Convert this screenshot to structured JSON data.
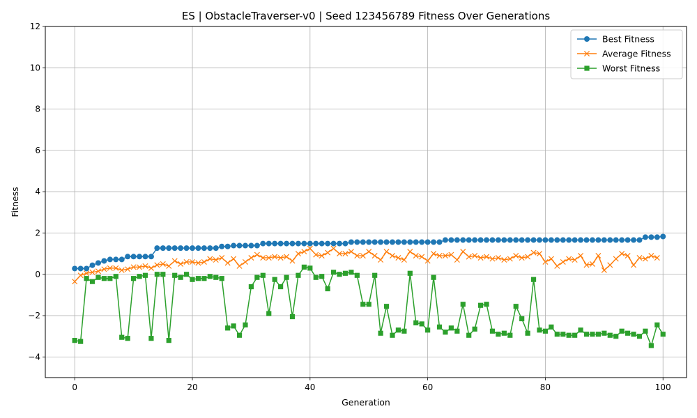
{
  "chart_data": {
    "type": "line",
    "title": "ES | ObstacleTraverser-v0 | Seed 123456789 Fitness Over Generations",
    "xlabel": "Generation",
    "ylabel": "Fitness",
    "xlim": [
      -5,
      104
    ],
    "ylim": [
      -5,
      12
    ],
    "xticks": [
      0,
      20,
      40,
      60,
      80,
      100
    ],
    "yticks": [
      -4,
      -2,
      0,
      2,
      4,
      6,
      8,
      10,
      12
    ],
    "grid": true,
    "legend_position": "top-right",
    "x_start": 0,
    "series": [
      {
        "name": "Best Fitness",
        "color": "#1f77b4",
        "marker": "circle",
        "values": [
          0.28,
          0.28,
          0.28,
          0.44,
          0.55,
          0.65,
          0.72,
          0.72,
          0.72,
          0.86,
          0.86,
          0.86,
          0.86,
          0.86,
          1.27,
          1.27,
          1.27,
          1.27,
          1.27,
          1.27,
          1.27,
          1.27,
          1.27,
          1.27,
          1.27,
          1.35,
          1.35,
          1.39,
          1.39,
          1.39,
          1.39,
          1.39,
          1.49,
          1.49,
          1.49,
          1.49,
          1.49,
          1.49,
          1.49,
          1.49,
          1.49,
          1.49,
          1.49,
          1.49,
          1.49,
          1.49,
          1.49,
          1.56,
          1.56,
          1.56,
          1.56,
          1.56,
          1.56,
          1.56,
          1.56,
          1.56,
          1.56,
          1.56,
          1.56,
          1.56,
          1.56,
          1.56,
          1.56,
          1.66,
          1.66,
          1.66,
          1.66,
          1.66,
          1.66,
          1.66,
          1.66,
          1.66,
          1.66,
          1.66,
          1.66,
          1.66,
          1.66,
          1.66,
          1.66,
          1.66,
          1.66,
          1.66,
          1.66,
          1.66,
          1.66,
          1.66,
          1.66,
          1.66,
          1.66,
          1.66,
          1.66,
          1.66,
          1.66,
          1.66,
          1.66,
          1.66,
          1.66,
          1.8,
          1.8,
          1.8,
          1.83
        ]
      },
      {
        "name": "Average Fitness",
        "color": "#ff7f0e",
        "marker": "x",
        "values": [
          -0.35,
          -0.05,
          0.05,
          0.1,
          0.15,
          0.25,
          0.3,
          0.3,
          0.2,
          0.25,
          0.35,
          0.35,
          0.4,
          0.3,
          0.45,
          0.5,
          0.4,
          0.65,
          0.5,
          0.6,
          0.6,
          0.55,
          0.6,
          0.75,
          0.7,
          0.8,
          0.55,
          0.75,
          0.4,
          0.6,
          0.8,
          0.95,
          0.8,
          0.8,
          0.85,
          0.8,
          0.85,
          0.65,
          1.0,
          1.1,
          1.25,
          0.95,
          0.9,
          1.05,
          1.25,
          1.0,
          1.0,
          1.1,
          0.9,
          0.9,
          1.1,
          0.9,
          0.7,
          1.1,
          0.9,
          0.8,
          0.7,
          1.1,
          0.9,
          0.85,
          0.65,
          1.0,
          0.9,
          0.9,
          0.95,
          0.7,
          1.1,
          0.85,
          0.9,
          0.8,
          0.85,
          0.75,
          0.8,
          0.7,
          0.75,
          0.9,
          0.8,
          0.85,
          1.05,
          1.0,
          0.6,
          0.75,
          0.4,
          0.6,
          0.75,
          0.7,
          0.9,
          0.45,
          0.5,
          0.9,
          0.2,
          0.45,
          0.75,
          1.0,
          0.9,
          0.45,
          0.8,
          0.75,
          0.9,
          0.8
        ]
      },
      {
        "name": "Worst Fitness",
        "color": "#2ca02c",
        "marker": "square",
        "values": [
          -3.2,
          -3.25,
          -0.2,
          -0.35,
          -0.15,
          -0.2,
          -0.2,
          -0.1,
          -3.05,
          -3.1,
          -0.2,
          -0.1,
          -0.05,
          -3.1,
          0.0,
          0.0,
          -3.2,
          -0.05,
          -0.15,
          0.0,
          -0.25,
          -0.2,
          -0.2,
          -0.1,
          -0.15,
          -0.2,
          -2.6,
          -2.5,
          -2.95,
          -2.45,
          -0.6,
          -0.15,
          -0.05,
          -1.9,
          -0.25,
          -0.6,
          -0.15,
          -2.05,
          -0.05,
          0.35,
          0.3,
          -0.15,
          -0.1,
          -0.7,
          0.1,
          0.0,
          0.05,
          0.1,
          -0.05,
          -1.45,
          -1.45,
          -0.05,
          -2.85,
          -1.55,
          -2.95,
          -2.7,
          -2.75,
          0.05,
          -2.35,
          -2.4,
          -2.7,
          -0.15,
          -2.55,
          -2.8,
          -2.6,
          -2.75,
          -1.45,
          -2.95,
          -2.65,
          -1.5,
          -1.45,
          -2.75,
          -2.9,
          -2.85,
          -2.95,
          -1.55,
          -2.15,
          -2.85,
          -0.25,
          -2.7,
          -2.75,
          -2.55,
          -2.9,
          -2.9,
          -2.95,
          -2.95,
          -2.7,
          -2.9,
          -2.9,
          -2.9,
          -2.85,
          -2.95,
          -3.0,
          -2.75,
          -2.85,
          -2.9,
          -3.0,
          -2.75,
          -3.45,
          -2.45,
          -2.9
        ]
      }
    ]
  }
}
